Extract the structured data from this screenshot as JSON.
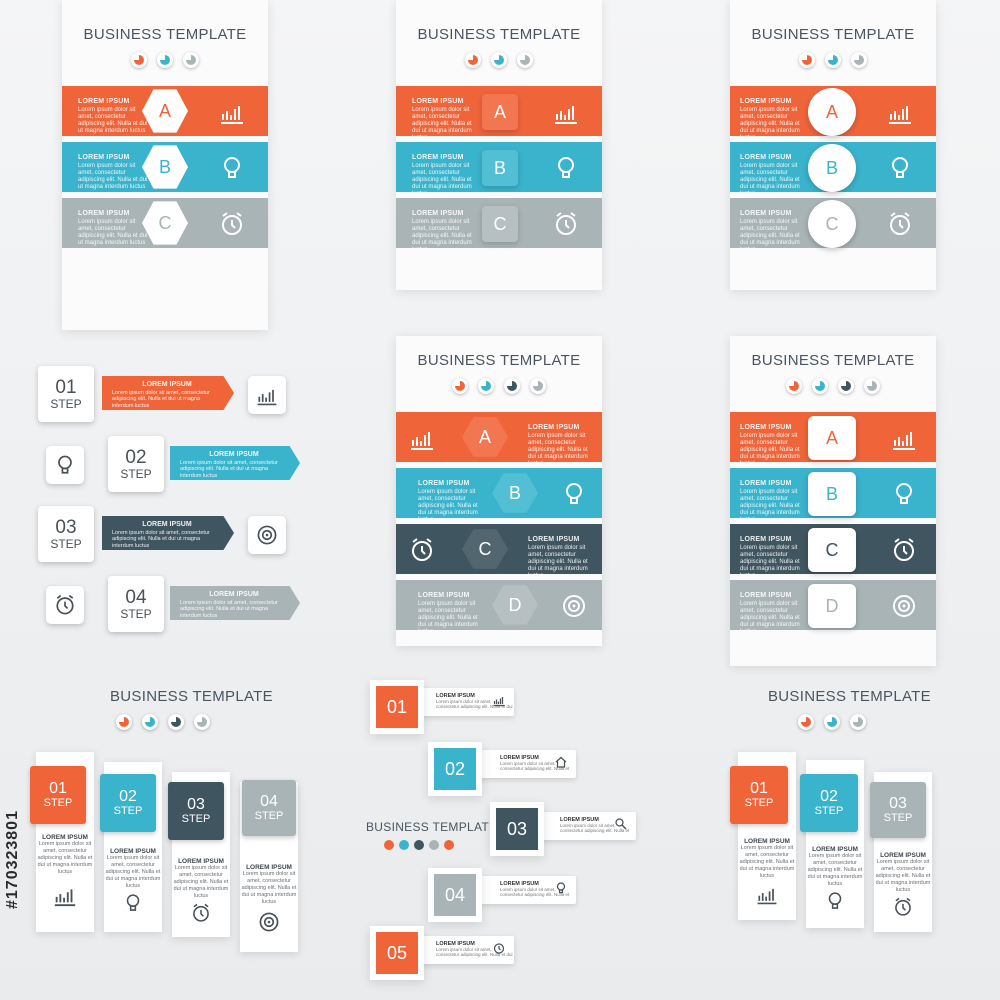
{
  "title": "BUSINESS  TEMPLATE",
  "lorem_head": "LOREM IPSUM",
  "lorem_body": "Lorem ipsum dolor sit amet, consectetur adipiscing elit. Nulla et dui ut magna interdum luctus",
  "step_label": "STEP",
  "letters": [
    "A",
    "B",
    "C",
    "D"
  ],
  "numbers": [
    "01",
    "02",
    "03",
    "04",
    "05"
  ],
  "watermark": "#170323801",
  "icons": {
    "chart": "chart-icon",
    "bulb": "lightbulb-icon",
    "clock": "alarm-clock-icon",
    "target": "target-icon",
    "house": "house-icon",
    "search": "magnifier-icon"
  },
  "colors": {
    "orange": "#f0643a",
    "blue": "#3ab3cc",
    "dark": "#3f5560",
    "gray": "#a9b4b7"
  }
}
